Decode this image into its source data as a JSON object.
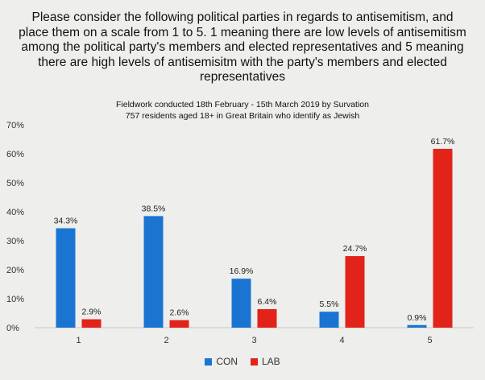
{
  "chart_data": {
    "type": "bar",
    "title": "Please consider the following political parties in regards to antisemitism, and place them on a scale from 1 to 5. 1 meaning there are low levels of antisemitism among the political party's members and elected representatives and 5 meaning there are high levels of antisemisitm with the party's members and elected representatives",
    "subtitle_lines": [
      "Fieldwork conducted 18th February - 15th March 2019 by Survation",
      "757 residents aged 18+ in Great Britain who identify as Jewish"
    ],
    "categories": [
      "1",
      "2",
      "3",
      "4",
      "5"
    ],
    "series": [
      {
        "name": "CON",
        "color": "#1a75d2",
        "values": [
          34.3,
          38.5,
          16.9,
          5.5,
          0.9
        ],
        "labels": [
          "34.3%",
          "38.5%",
          "16.9%",
          "5.5%",
          "0.9%"
        ]
      },
      {
        "name": "LAB",
        "color": "#e2231a",
        "values": [
          2.9,
          2.6,
          6.4,
          24.7,
          61.7
        ],
        "labels": [
          "2.9%",
          "2.6%",
          "6.4%",
          "24.7%",
          "61.7%"
        ]
      }
    ],
    "ylim": [
      0,
      70
    ],
    "yticks": [
      0,
      10,
      20,
      30,
      40,
      50,
      60,
      70
    ],
    "ytick_labels": [
      "0%",
      "10%",
      "20%",
      "30%",
      "40%",
      "50%",
      "60%",
      "70%"
    ],
    "grid": false,
    "legend_position": "bottom-center",
    "xlabel": "",
    "ylabel": ""
  }
}
